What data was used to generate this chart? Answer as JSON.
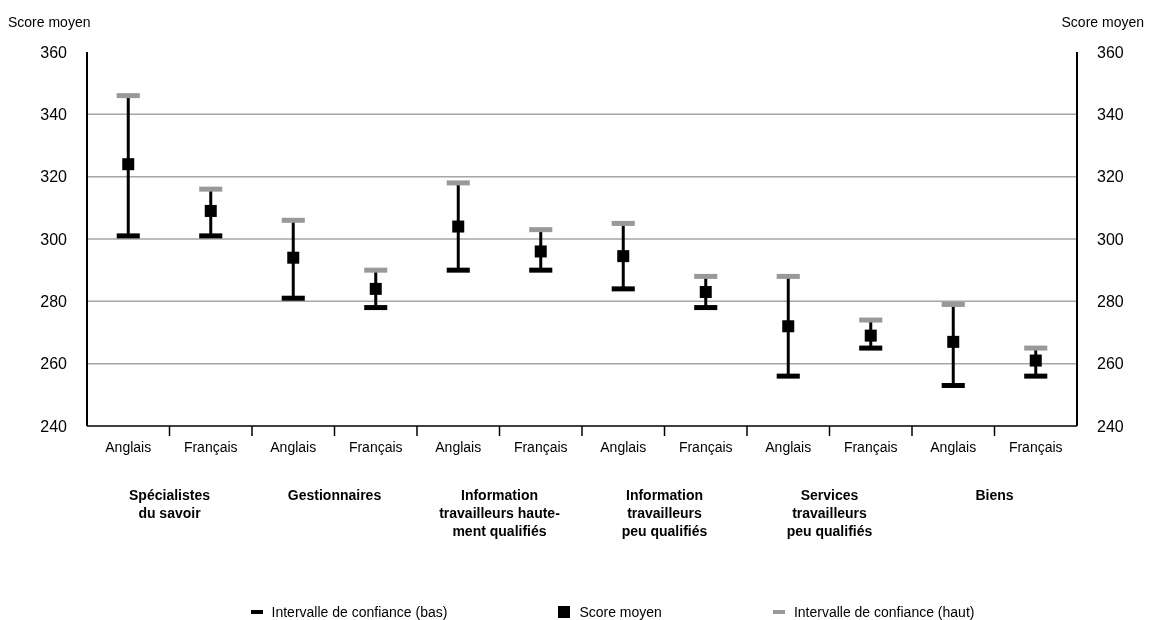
{
  "chart_data": {
    "type": "scatter",
    "ylabel": "Score moyen",
    "y2label": "Score moyen",
    "categories": [
      "Anglais",
      "Français",
      "Anglais",
      "Français",
      "Anglais",
      "Français",
      "Anglais",
      "Français",
      "Anglais",
      "Français",
      "Anglais",
      "Français"
    ],
    "series": [
      {
        "name": "Intervalle de confiance (bas)",
        "color": "#000000",
        "values": [
          null,
          null,
          null,
          null,
          null,
          null,
          null,
          null,
          null,
          null,
          null,
          null
        ]
      },
      {
        "name": "Score moyen",
        "color": "#000000",
        "marker": "square",
        "values": [
          324,
          309,
          294,
          284,
          304,
          296,
          294.5,
          283,
          272,
          269,
          267,
          261
        ],
        "errors": [
          [
            301,
            346
          ],
          [
            301,
            316
          ],
          [
            281,
            306
          ],
          [
            278,
            290
          ],
          [
            290,
            318
          ],
          [
            290,
            303
          ],
          [
            284,
            305
          ],
          [
            278,
            288
          ],
          [
            256,
            288
          ],
          [
            265,
            274
          ],
          [
            253,
            279
          ],
          [
            256,
            265
          ]
        ]
      },
      {
        "name": "Intervalle de confiance (haut)",
        "color": "#999999",
        "values": [
          null,
          null,
          null,
          null,
          null,
          null,
          null,
          null,
          null,
          null,
          null,
          null
        ]
      }
    ],
    "ylim": [
      240,
      360
    ],
    "yticks": [
      240,
      260,
      280,
      300,
      320,
      340,
      360
    ],
    "y2lim": [
      240,
      360
    ],
    "y2ticks": [
      240,
      260,
      280,
      300,
      320,
      340,
      360
    ],
    "grid": "y",
    "legend": "bottom",
    "annotations": [
      "Spécialistes\ndu savoir",
      "Gestionnaires",
      "Information\ntravailleurs haute-\nment qualifiés",
      "Information\ntravailleurs\npeu qualifiés",
      "Services\ntravailleurs\npeu qualifiés",
      "Biens"
    ]
  }
}
